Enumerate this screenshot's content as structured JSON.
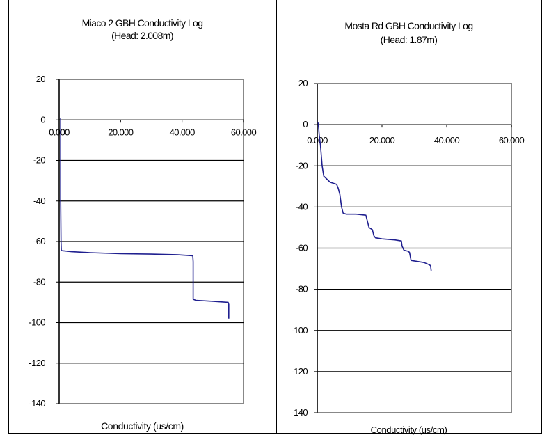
{
  "chart_data": [
    {
      "type": "line",
      "title": "Miaco 2 GBH Conductivity Log",
      "subtitle": "(Head: 2.008m)",
      "xlabel": "Conductivity (us/cm)",
      "ylabel": "",
      "xlim": [
        0,
        60
      ],
      "ylim": [
        -140,
        20
      ],
      "xticks": [
        "0.000",
        "20.000",
        "40.000",
        "60.000"
      ],
      "yticks": [
        "20",
        "0",
        "-20",
        "-40",
        "-60",
        "-80",
        "-100",
        "-120",
        "-140"
      ],
      "grid": "horizontal",
      "series": [
        {
          "color": "#1f1f8f",
          "x": [
            0.5,
            0.5,
            0.6,
            0.7,
            4,
            10,
            20,
            30,
            38,
            43.5,
            43.6,
            43.6,
            44.5,
            50,
            55,
            55.2,
            55.2
          ],
          "y": [
            1,
            -40,
            -60,
            -64.5,
            -65,
            -65.5,
            -66,
            -66.2,
            -66.5,
            -67,
            -70,
            -88.5,
            -89,
            -89.5,
            -90,
            -91,
            -98
          ]
        }
      ]
    },
    {
      "type": "line",
      "title": "Mosta Rd GBH Conductivity Log",
      "subtitle": "(Head: 1.87m)",
      "xlabel": "Conductivity (us/cm)",
      "ylabel": "",
      "xlim": [
        0,
        60
      ],
      "ylim": [
        -140,
        20
      ],
      "xticks": [
        "0.000",
        "20.000",
        "40.000",
        "60.000"
      ],
      "yticks": [
        "20",
        "0",
        "-20",
        "-40",
        "-60",
        "-80",
        "-100",
        "-120",
        "-140"
      ],
      "grid": "horizontal",
      "series": [
        {
          "color": "#1f1f8f",
          "x": [
            0.3,
            0.6,
            1,
            1.5,
            2,
            3,
            4,
            5,
            6,
            6.5,
            7,
            7.5,
            8,
            9,
            12,
            15,
            15.5,
            16,
            17,
            17.5,
            18,
            20,
            24,
            26,
            26.2,
            26.8,
            28,
            28.5,
            29,
            31,
            33,
            34.5,
            35,
            35.2
          ],
          "y": [
            1,
            -5,
            -10,
            -20,
            -25,
            -26.5,
            -28,
            -28.5,
            -29,
            -31,
            -34,
            -40,
            -43,
            -43.5,
            -43.5,
            -44,
            -47,
            -50,
            -51,
            -54,
            -55,
            -55.5,
            -56,
            -56.5,
            -59,
            -61,
            -61.5,
            -62,
            -66,
            -66.5,
            -67,
            -68,
            -68.5,
            -71
          ]
        }
      ]
    }
  ]
}
